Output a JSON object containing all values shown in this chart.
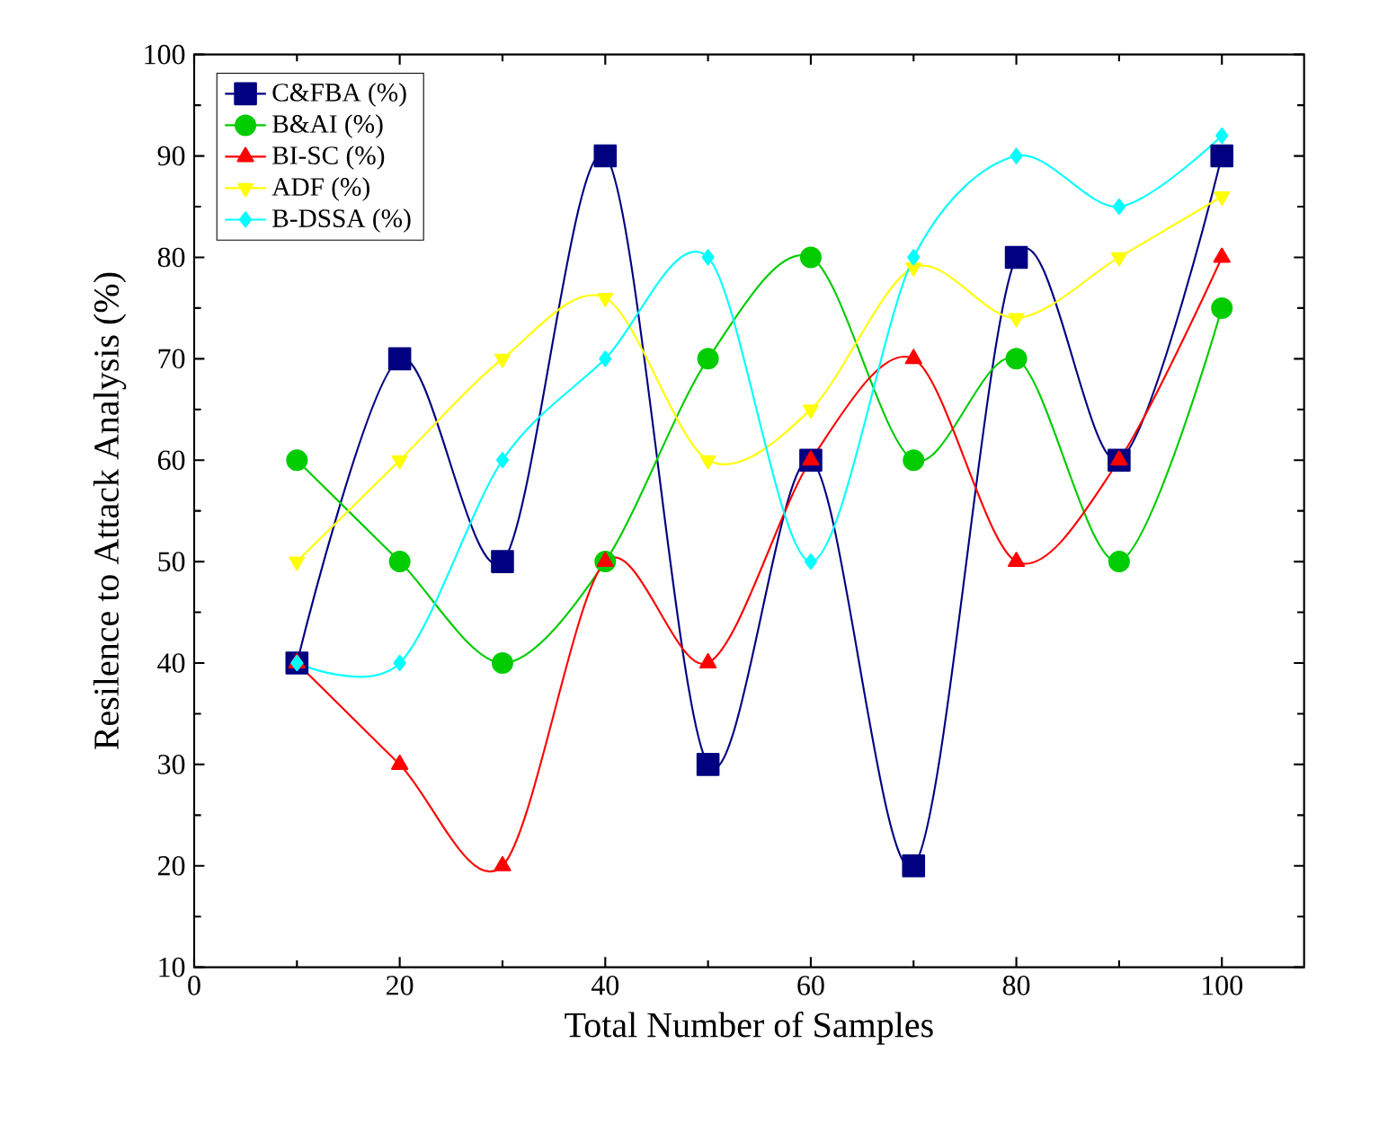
{
  "chart_data": {
    "type": "line",
    "xlabel": "Total Number of Samples",
    "ylabel": "Resilence to Attack Analysis (%)",
    "x": [
      10,
      20,
      30,
      40,
      50,
      60,
      70,
      80,
      90,
      100
    ],
    "xlim": [
      0,
      108
    ],
    "xticks": [
      0,
      20,
      40,
      60,
      80,
      100
    ],
    "ylim": [
      10,
      100
    ],
    "yticks": [
      10,
      20,
      30,
      40,
      50,
      60,
      70,
      80,
      90,
      100
    ],
    "legend": "top left",
    "grid": false,
    "series": [
      {
        "name": "C&FBA (%)",
        "color": "#000080",
        "marker": "square",
        "values": [
          40,
          70,
          50,
          90,
          30,
          60,
          20,
          80,
          60,
          90
        ]
      },
      {
        "name": "B&AI (%)",
        "color": "#00cc00",
        "marker": "circle",
        "values": [
          60,
          50,
          40,
          50,
          70,
          80,
          60,
          70,
          50,
          75
        ]
      },
      {
        "name": "BI-SC (%)",
        "color": "#ff0000",
        "marker": "triangle",
        "values": [
          40,
          30,
          20,
          50,
          40,
          60,
          70,
          50,
          60,
          80
        ]
      },
      {
        "name": "ADF (%)",
        "color": "#ffff00",
        "marker": "triangle-down",
        "values": [
          50,
          60,
          70,
          76,
          60,
          65,
          79,
          74,
          80,
          86
        ]
      },
      {
        "name": "B-DSSA (%)",
        "color": "#00ffff",
        "marker": "diamond",
        "values": [
          40,
          40,
          60,
          70,
          80,
          50,
          80,
          90,
          85,
          92
        ]
      }
    ]
  }
}
